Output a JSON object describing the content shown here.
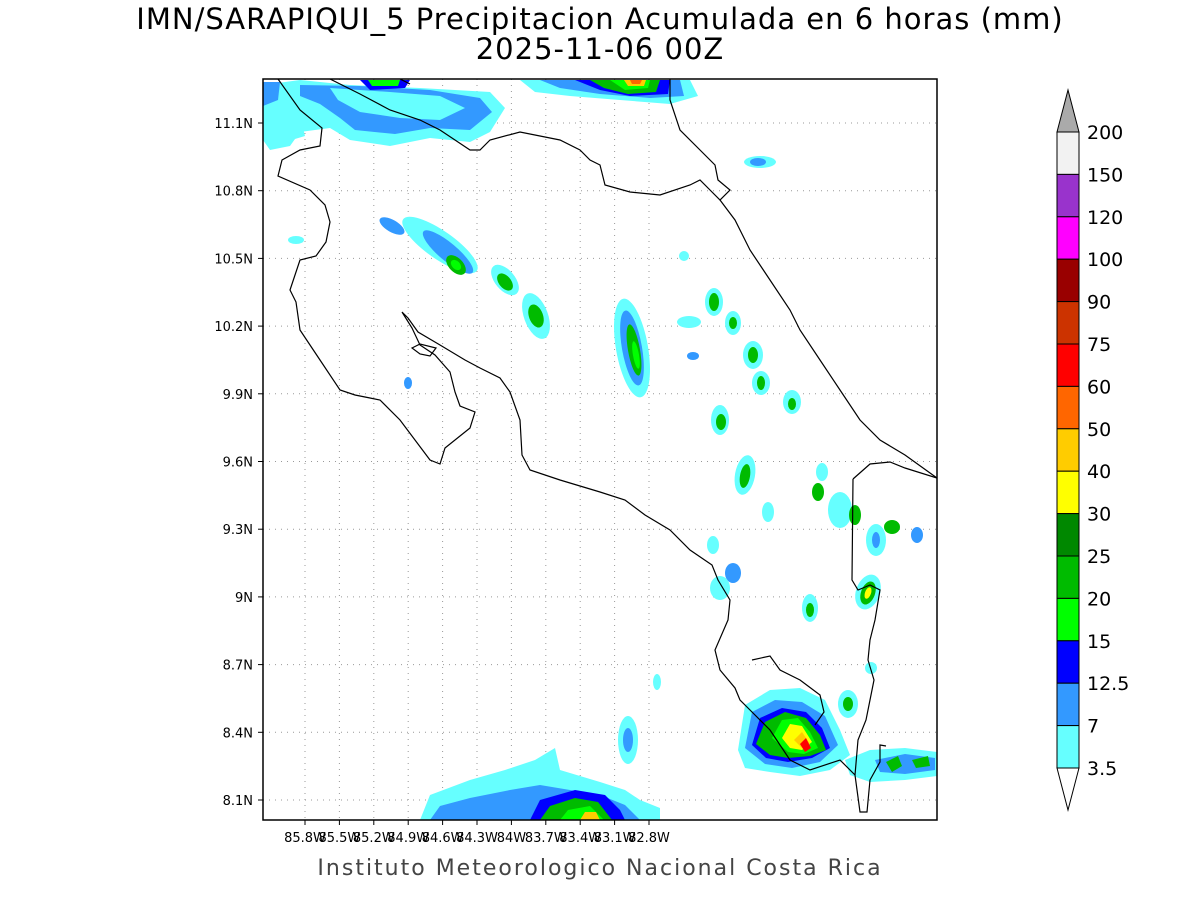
{
  "title": {
    "line1": "IMN/SARAPIQUI_5 Precipitacion Acumulada en 6 horas (mm)",
    "line2": "2025-11-06 00Z"
  },
  "footer": "Instituto Meteorologico Nacional Costa Rica",
  "map": {
    "lon_range": [
      -86.0,
      -83.0
    ],
    "lat_range": [
      8.0,
      11.2
    ],
    "x_tick_labels": [
      "85.8W",
      "85.5W",
      "85.2W",
      "84.9W",
      "84.6W",
      "84.3W",
      "84W",
      "83.7W",
      "83.4W",
      "83.1W",
      "82.8W"
    ],
    "y_tick_labels": [
      "11.1N",
      "10.8N",
      "10.5N",
      "10.2N",
      "9.9N",
      "9.6N",
      "9.3N",
      "9N",
      "8.7N",
      "8.4N",
      "8.1N"
    ],
    "grid": "dotted",
    "frame_color": "#000000",
    "coast_color": "#000000"
  },
  "colorbar": {
    "labels": [
      "200",
      "150",
      "120",
      "100",
      "90",
      "75",
      "60",
      "50",
      "40",
      "30",
      "25",
      "20",
      "15",
      "12.5",
      "7",
      "3.5"
    ],
    "colors": [
      "#f2f2f2",
      "#9933cc",
      "#ff00ff",
      "#990000",
      "#cc3300",
      "#ff0000",
      "#ff6600",
      "#ffcc00",
      "#ffff00",
      "#008800",
      "#00bb00",
      "#00ff00",
      "#0000ff",
      "#3399ff",
      "#66ffff"
    ],
    "over_color": "#aaaaaa",
    "under_color": "#ffffff"
  }
}
